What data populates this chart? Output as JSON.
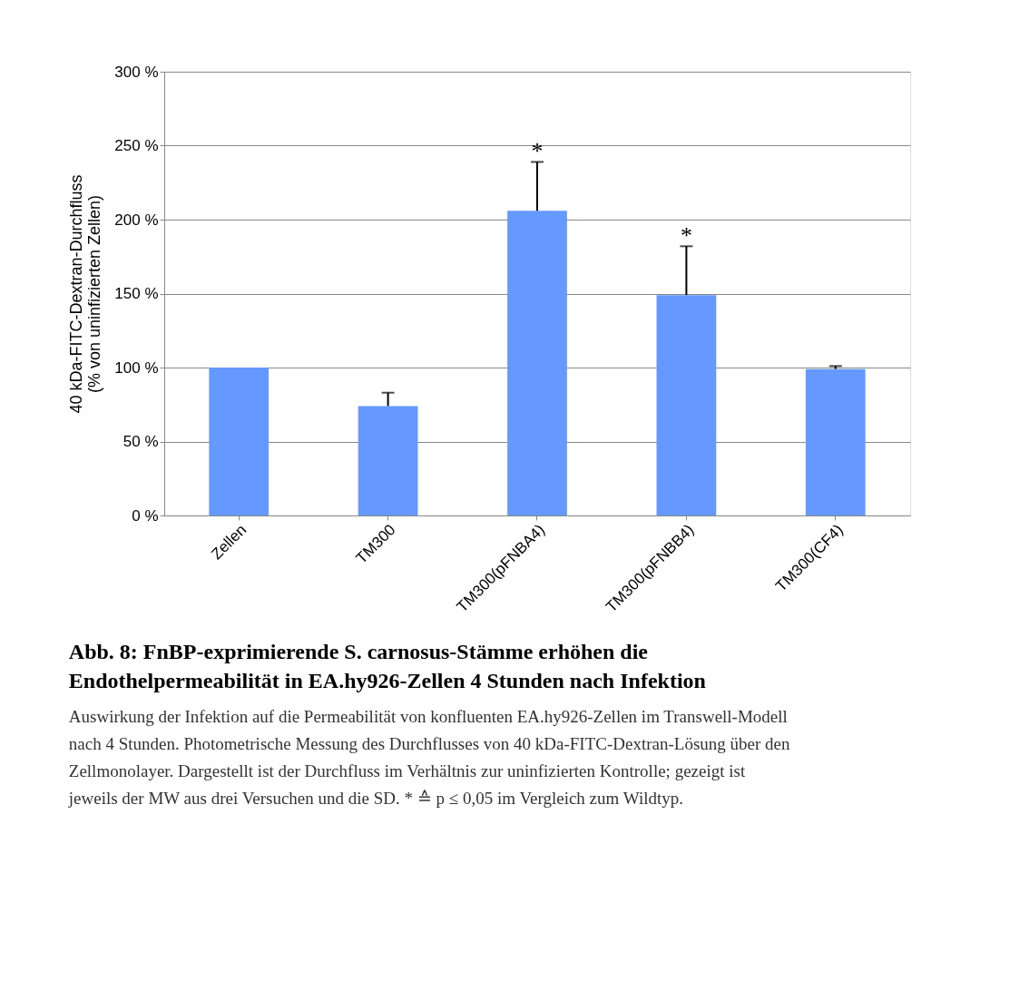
{
  "chart_data": {
    "type": "bar",
    "title": "Abb. 8: FnBP-exprimierende S. carnosus-Stämme erhöhen die Endothelpermeabilität in EA.hy926-Zellen 4 Stunden nach Infektion",
    "ylabel": "40 kDa-FITC-Dextran-Durchfluss\n(% von uninfizierten Zellen)",
    "categories": [
      "Zellen",
      "TM300",
      "TM300(pFNBA4)",
      "TM300(pFNBB4)",
      "TM300(CF4)"
    ],
    "values": [
      100,
      74,
      206,
      149,
      99
    ],
    "errors": [
      null,
      [
        74,
        83
      ],
      [
        206,
        239
      ],
      [
        149,
        182
      ],
      [
        99,
        101
      ]
    ],
    "color": "#6699ff",
    "ylim": [
      0,
      300
    ],
    "yticks": [
      {
        "value": 0,
        "label": "0 %"
      },
      {
        "value": 50,
        "label": "50 %"
      },
      {
        "value": 100,
        "label": "100 %"
      },
      {
        "value": 150,
        "label": "150 %"
      },
      {
        "value": 200,
        "label": "200 %"
      },
      {
        "value": 250,
        "label": "250 %"
      },
      {
        "value": 300,
        "label": "300 %"
      }
    ],
    "grid": "y",
    "value_labels": [
      null,
      null,
      "*",
      "*",
      null
    ],
    "annotations": [
      "Auswirkung der Infektion auf die Permeabilität von konfluenten EA.hy926-Zellen im Transwell-Modell nach 4 Stunden. Photometrische Messung des Durchflusses von 40 kDa-FITC-Dextran-Lösung über den Zellmonolayer. Dargestellt ist der Durchfluss im Verhältnis zur uninfizierten Kontrolle; gezeigt ist jeweils der MW aus drei Versuchen und die SD. * ≙  p ≤ 0,05 im Vergleich zum Wildtyp."
    ]
  }
}
